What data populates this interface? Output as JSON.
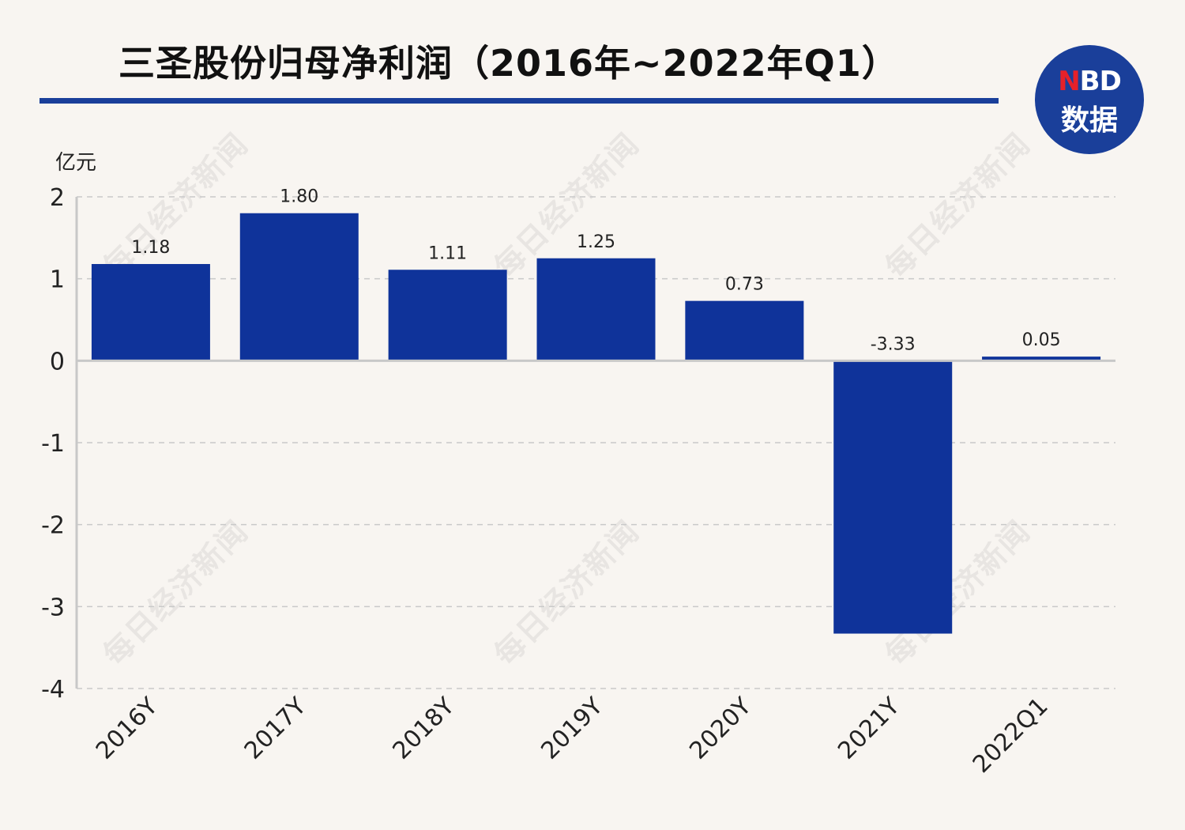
{
  "title": "三圣股份归母净利润（2016年~2022年Q1）",
  "logo": {
    "n": "N",
    "bd": "BD",
    "sub": "数据"
  },
  "watermark": "每日经济新闻",
  "colors": {
    "bar": "#0f339a",
    "rule": "#1a3f9a",
    "background": "#f8f5f1"
  },
  "chart_data": {
    "type": "bar",
    "unit_label": "亿元",
    "categories": [
      "2016Y",
      "2017Y",
      "2018Y",
      "2019Y",
      "2020Y",
      "2021Y",
      "2022Q1"
    ],
    "values": [
      1.18,
      1.8,
      1.11,
      1.25,
      0.73,
      -3.33,
      0.05
    ],
    "value_labels": [
      "1.18",
      "1.80",
      "1.11",
      "1.25",
      "0.73",
      "-3.33",
      "0.05"
    ],
    "ylim": [
      -4,
      2
    ],
    "yticks": [
      2,
      1,
      0,
      -1,
      -2,
      -3,
      -4
    ],
    "grid": true,
    "legend": "none"
  }
}
